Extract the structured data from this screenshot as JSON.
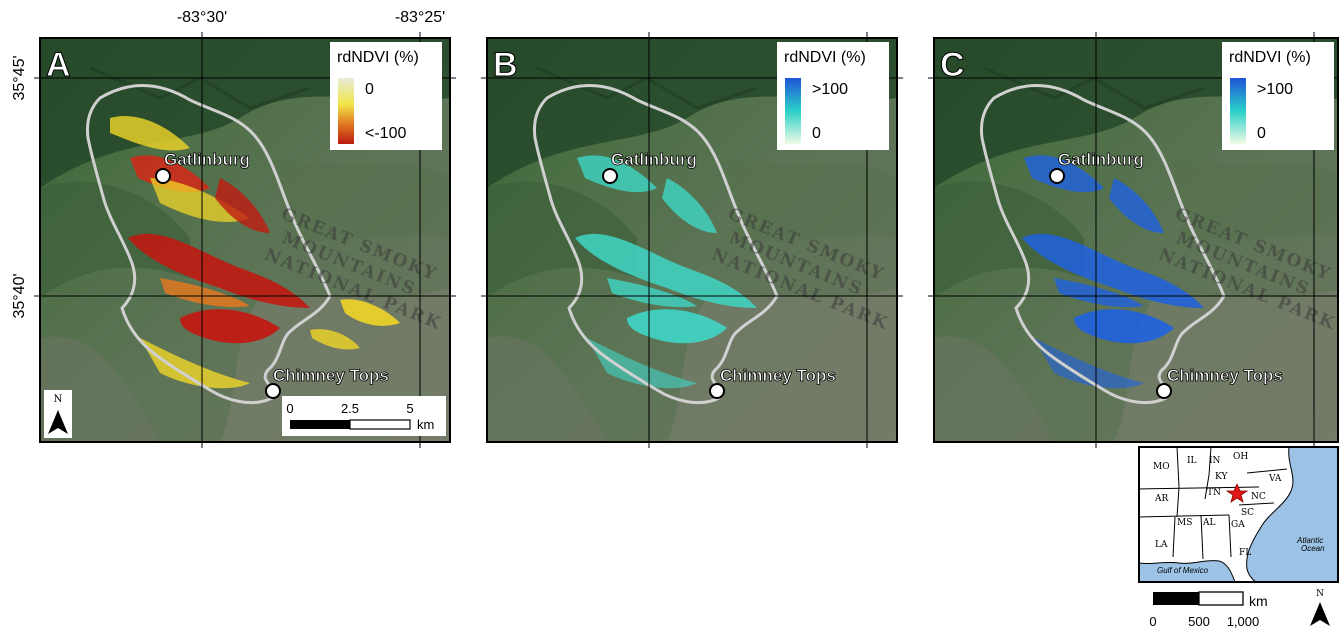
{
  "axes": {
    "lon_ticks": [
      "-83°30'",
      "-83°25'"
    ],
    "lat_ticks": [
      "35°45'",
      "35°40'"
    ]
  },
  "panels": [
    {
      "letter": "A",
      "legend_title": "rdNDVI (%)",
      "legend_top": "0",
      "legend_bottom": "<-100",
      "legend_colors": [
        "#e8ecd8",
        "#f1e548",
        "#e07820",
        "#bb1a12"
      ]
    },
    {
      "letter": "B",
      "legend_title": "rdNDVI (%)",
      "legend_top": ">100",
      "legend_bottom": "0",
      "legend_colors": [
        "#1f55d8",
        "#2ad0c8",
        "#f0fbe6"
      ]
    },
    {
      "letter": "C",
      "legend_title": "rdNDVI (%)",
      "legend_top": ">100",
      "legend_bottom": "0",
      "legend_colors": [
        "#1f55d8",
        "#2ad0c8",
        "#f0fbe6"
      ]
    }
  ],
  "places": {
    "gatlinburg": "Gatlinburg",
    "chimney_tops": "Chimney Tops"
  },
  "park_label": [
    "GREAT SMOKY",
    "MOUNTAINS",
    "NATIONAL PARK"
  ],
  "scalebar": {
    "labels": [
      "0",
      "2.5",
      "5"
    ],
    "unit": "km"
  },
  "north_label": "N",
  "inset": {
    "states": [
      "MO",
      "IL",
      "IN",
      "OH",
      "KY",
      "VA",
      "TN",
      "NC",
      "AR",
      "SC",
      "MS",
      "AL",
      "GA",
      "LA",
      "FL"
    ],
    "ocean_label": [
      "Atlantic",
      "Ocean"
    ],
    "gulf_label": "Gulf of Mexico",
    "scalebar_labels": [
      "0",
      "500",
      "1,000"
    ],
    "scalebar_unit": "km",
    "north_label": "N"
  },
  "colors": {
    "burn_a_severe": "#c01a12",
    "burn_a_moderate": "#f0d628",
    "burn_bc_high": "#1f62e0",
    "burn_bc_low": "#3fd6c6",
    "fire_perimeter": "#d0d0d0"
  }
}
